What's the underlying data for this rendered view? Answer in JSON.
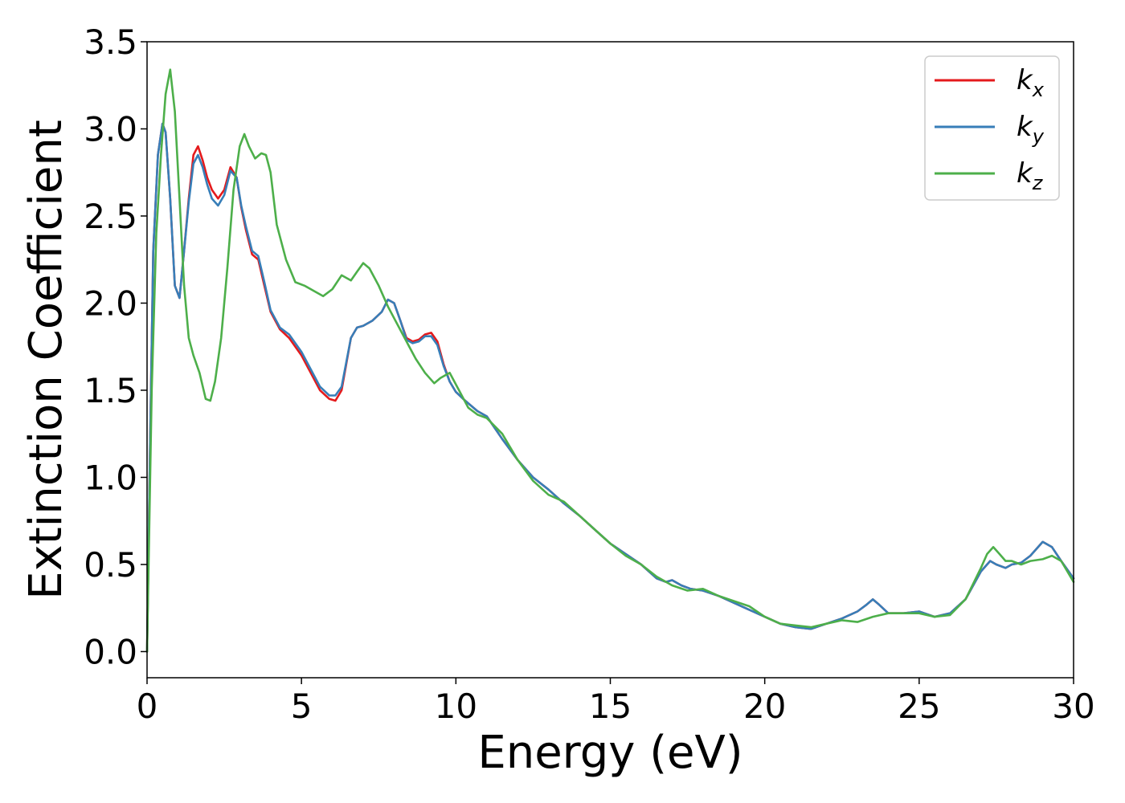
{
  "chart_data": {
    "type": "line",
    "xlabel": "Energy (eV)",
    "ylabel": "Extinction Coefficient",
    "xlim": [
      0,
      30
    ],
    "ylim": [
      -0.15,
      3.5
    ],
    "xticks": [
      0,
      5,
      10,
      15,
      20,
      25,
      30
    ],
    "yticks": [
      0.0,
      0.5,
      1.0,
      1.5,
      2.0,
      2.5,
      3.0,
      3.5
    ],
    "xtick_labels": [
      "0",
      "5",
      "10",
      "15",
      "20",
      "25",
      "30"
    ],
    "ytick_labels": [
      "0.0",
      "0.5",
      "1.0",
      "1.5",
      "2.0",
      "2.5",
      "3.0",
      "3.5"
    ],
    "grid": false,
    "legend_position": "top-right",
    "series": [
      {
        "name": "k_x",
        "label_base": "k",
        "label_sub": "x",
        "color": "#e41a1c",
        "x": [
          0,
          0.1,
          0.2,
          0.35,
          0.5,
          0.6,
          0.75,
          0.9,
          1.05,
          1.2,
          1.35,
          1.5,
          1.65,
          1.8,
          1.95,
          2.1,
          2.3,
          2.5,
          2.7,
          2.9,
          3.05,
          3.2,
          3.4,
          3.6,
          3.8,
          4.0,
          4.3,
          4.6,
          5.0,
          5.3,
          5.6,
          5.9,
          6.1,
          6.3,
          6.45,
          6.6,
          6.8,
          7.0,
          7.3,
          7.6,
          7.8,
          8.0,
          8.2,
          8.4,
          8.6,
          8.8,
          9.0,
          9.2,
          9.4,
          9.6,
          9.8,
          10.0,
          10.3,
          10.7,
          11.0,
          11.5,
          12.0,
          12.5,
          13.0,
          13.5,
          14.0,
          14.5,
          15.0,
          15.5,
          16.0,
          16.5,
          16.8,
          17.0,
          17.3,
          17.6,
          18.0,
          18.5,
          19.0,
          19.5,
          20.0,
          20.5,
          21.0,
          21.5,
          22.0,
          22.5,
          23.0,
          23.3,
          23.5,
          23.7,
          24.0,
          24.5,
          25.0,
          25.5,
          26.0,
          26.5,
          27.0,
          27.3,
          27.5,
          27.8,
          28.0,
          28.3,
          28.6,
          29.0,
          29.3,
          29.6,
          30.0
        ],
        "y": [
          0.0,
          1.2,
          2.3,
          2.85,
          3.03,
          2.98,
          2.6,
          2.1,
          2.03,
          2.3,
          2.6,
          2.85,
          2.9,
          2.82,
          2.72,
          2.65,
          2.6,
          2.65,
          2.78,
          2.72,
          2.55,
          2.42,
          2.28,
          2.25,
          2.1,
          1.95,
          1.85,
          1.8,
          1.7,
          1.6,
          1.5,
          1.45,
          1.44,
          1.5,
          1.65,
          1.8,
          1.86,
          1.87,
          1.9,
          1.95,
          2.02,
          2.0,
          1.9,
          1.8,
          1.78,
          1.79,
          1.82,
          1.83,
          1.78,
          1.65,
          1.55,
          1.49,
          1.44,
          1.38,
          1.35,
          1.22,
          1.1,
          1.0,
          0.93,
          0.85,
          0.78,
          0.7,
          0.62,
          0.56,
          0.5,
          0.42,
          0.4,
          0.41,
          0.38,
          0.36,
          0.35,
          0.32,
          0.28,
          0.24,
          0.2,
          0.16,
          0.14,
          0.13,
          0.16,
          0.19,
          0.23,
          0.27,
          0.3,
          0.27,
          0.22,
          0.22,
          0.23,
          0.2,
          0.22,
          0.3,
          0.46,
          0.52,
          0.5,
          0.48,
          0.5,
          0.51,
          0.55,
          0.63,
          0.6,
          0.52,
          0.42
        ]
      },
      {
        "name": "k_y",
        "label_base": "k",
        "label_sub": "y",
        "color": "#377eb8",
        "x": [
          0,
          0.1,
          0.2,
          0.35,
          0.5,
          0.6,
          0.75,
          0.9,
          1.05,
          1.2,
          1.35,
          1.5,
          1.65,
          1.8,
          1.95,
          2.1,
          2.3,
          2.5,
          2.7,
          2.9,
          3.05,
          3.2,
          3.4,
          3.6,
          3.8,
          4.0,
          4.3,
          4.6,
          5.0,
          5.3,
          5.6,
          5.9,
          6.1,
          6.3,
          6.45,
          6.6,
          6.8,
          7.0,
          7.3,
          7.6,
          7.8,
          8.0,
          8.2,
          8.4,
          8.6,
          8.8,
          9.0,
          9.2,
          9.4,
          9.6,
          9.8,
          10.0,
          10.3,
          10.7,
          11.0,
          11.5,
          12.0,
          12.5,
          13.0,
          13.5,
          14.0,
          14.5,
          15.0,
          15.5,
          16.0,
          16.5,
          16.8,
          17.0,
          17.3,
          17.6,
          18.0,
          18.5,
          19.0,
          19.5,
          20.0,
          20.5,
          21.0,
          21.5,
          22.0,
          22.5,
          23.0,
          23.3,
          23.5,
          23.7,
          24.0,
          24.5,
          25.0,
          25.5,
          26.0,
          26.5,
          27.0,
          27.3,
          27.5,
          27.8,
          28.0,
          28.3,
          28.6,
          29.0,
          29.3,
          29.6,
          30.0
        ],
        "y": [
          0.0,
          1.2,
          2.3,
          2.85,
          3.03,
          2.98,
          2.6,
          2.1,
          2.03,
          2.3,
          2.58,
          2.8,
          2.85,
          2.78,
          2.68,
          2.6,
          2.56,
          2.62,
          2.76,
          2.72,
          2.56,
          2.44,
          2.3,
          2.27,
          2.12,
          1.96,
          1.86,
          1.82,
          1.72,
          1.62,
          1.52,
          1.47,
          1.47,
          1.52,
          1.66,
          1.8,
          1.86,
          1.87,
          1.9,
          1.95,
          2.02,
          2.0,
          1.9,
          1.79,
          1.77,
          1.78,
          1.81,
          1.81,
          1.76,
          1.64,
          1.55,
          1.49,
          1.44,
          1.38,
          1.35,
          1.22,
          1.1,
          1.0,
          0.93,
          0.85,
          0.78,
          0.7,
          0.62,
          0.56,
          0.5,
          0.42,
          0.4,
          0.41,
          0.38,
          0.36,
          0.35,
          0.32,
          0.28,
          0.24,
          0.2,
          0.16,
          0.14,
          0.13,
          0.16,
          0.19,
          0.23,
          0.27,
          0.3,
          0.27,
          0.22,
          0.22,
          0.23,
          0.2,
          0.22,
          0.3,
          0.46,
          0.52,
          0.5,
          0.48,
          0.5,
          0.51,
          0.55,
          0.63,
          0.6,
          0.52,
          0.42
        ]
      },
      {
        "name": "k_z",
        "label_base": "k",
        "label_sub": "z",
        "color": "#4daf4a",
        "x": [
          0,
          0.15,
          0.3,
          0.45,
          0.6,
          0.75,
          0.9,
          1.05,
          1.2,
          1.35,
          1.5,
          1.7,
          1.9,
          2.05,
          2.2,
          2.4,
          2.6,
          2.8,
          3.0,
          3.15,
          3.3,
          3.5,
          3.7,
          3.85,
          4.0,
          4.2,
          4.5,
          4.8,
          5.1,
          5.4,
          5.7,
          6.0,
          6.3,
          6.6,
          6.8,
          7.0,
          7.2,
          7.5,
          7.8,
          8.1,
          8.4,
          8.7,
          9.0,
          9.3,
          9.5,
          9.8,
          10.1,
          10.4,
          10.7,
          11.0,
          11.5,
          12.0,
          12.5,
          13.0,
          13.5,
          14.0,
          14.5,
          15.0,
          15.5,
          16.0,
          16.5,
          17.0,
          17.5,
          18.0,
          18.5,
          19.0,
          19.5,
          20.0,
          20.5,
          21.0,
          21.5,
          22.0,
          22.5,
          23.0,
          23.5,
          24.0,
          24.5,
          25.0,
          25.5,
          26.0,
          26.5,
          27.0,
          27.2,
          27.4,
          27.6,
          27.8,
          28.0,
          28.3,
          28.6,
          29.0,
          29.3,
          29.6,
          30.0
        ],
        "y": [
          0.0,
          1.5,
          2.4,
          2.85,
          3.2,
          3.34,
          3.1,
          2.6,
          2.1,
          1.8,
          1.7,
          1.6,
          1.45,
          1.44,
          1.55,
          1.8,
          2.2,
          2.65,
          2.9,
          2.97,
          2.9,
          2.83,
          2.86,
          2.85,
          2.75,
          2.45,
          2.25,
          2.12,
          2.1,
          2.07,
          2.04,
          2.08,
          2.16,
          2.13,
          2.18,
          2.23,
          2.2,
          2.1,
          1.98,
          1.88,
          1.78,
          1.68,
          1.6,
          1.54,
          1.57,
          1.6,
          1.5,
          1.4,
          1.36,
          1.34,
          1.25,
          1.1,
          0.98,
          0.9,
          0.86,
          0.78,
          0.7,
          0.62,
          0.55,
          0.5,
          0.43,
          0.38,
          0.35,
          0.36,
          0.32,
          0.29,
          0.26,
          0.2,
          0.16,
          0.15,
          0.14,
          0.16,
          0.18,
          0.17,
          0.2,
          0.22,
          0.22,
          0.22,
          0.2,
          0.21,
          0.3,
          0.48,
          0.56,
          0.6,
          0.56,
          0.52,
          0.52,
          0.5,
          0.52,
          0.53,
          0.55,
          0.52,
          0.4
        ]
      }
    ]
  }
}
